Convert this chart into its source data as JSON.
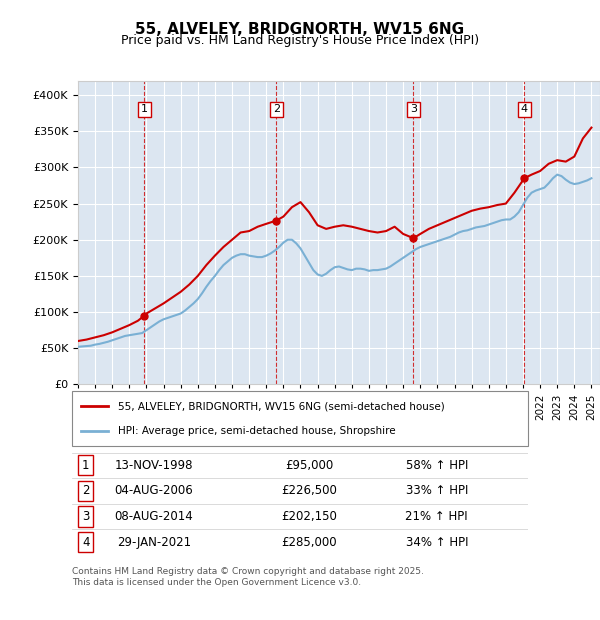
{
  "title": "55, ALVELEY, BRIDGNORTH, WV15 6NG",
  "subtitle": "Price paid vs. HM Land Registry's House Price Index (HPI)",
  "ylabel": "",
  "ylim": [
    0,
    420000
  ],
  "yticks": [
    0,
    50000,
    100000,
    150000,
    200000,
    250000,
    300000,
    350000,
    400000
  ],
  "ytick_labels": [
    "£0",
    "£50K",
    "£100K",
    "£150K",
    "£200K",
    "£250K",
    "£300K",
    "£350K",
    "£400K"
  ],
  "xlim_start": 1995.0,
  "xlim_end": 2025.5,
  "background_color": "#dce6f1",
  "plot_bg_color": "#dce6f1",
  "grid_color": "#ffffff",
  "hpi_color": "#7ab0d4",
  "price_color": "#cc0000",
  "transactions": [
    {
      "num": 1,
      "date_x": 1998.87,
      "price": 95000,
      "label": "13-NOV-1998",
      "price_str": "£95,000",
      "hpi_str": "58% ↑ HPI"
    },
    {
      "num": 2,
      "date_x": 2006.59,
      "price": 226500,
      "label": "04-AUG-2006",
      "price_str": "£226,500",
      "hpi_str": "33% ↑ HPI"
    },
    {
      "num": 3,
      "date_x": 2014.6,
      "price": 202150,
      "label": "08-AUG-2014",
      "price_str": "£202,150",
      "hpi_str": "21% ↑ HPI"
    },
    {
      "num": 4,
      "date_x": 2021.08,
      "price": 285000,
      "label": "29-JAN-2021",
      "price_str": "£285,000",
      "hpi_str": "34% ↑ HPI"
    }
  ],
  "legend_line1": "55, ALVELEY, BRIDGNORTH, WV15 6NG (semi-detached house)",
  "legend_line2": "HPI: Average price, semi-detached house, Shropshire",
  "footer": "Contains HM Land Registry data © Crown copyright and database right 2025.\nThis data is licensed under the Open Government Licence v3.0.",
  "hpi_data_x": [
    1995.0,
    1995.25,
    1995.5,
    1995.75,
    1996.0,
    1996.25,
    1996.5,
    1996.75,
    1997.0,
    1997.25,
    1997.5,
    1997.75,
    1998.0,
    1998.25,
    1998.5,
    1998.75,
    1999.0,
    1999.25,
    1999.5,
    1999.75,
    2000.0,
    2000.25,
    2000.5,
    2000.75,
    2001.0,
    2001.25,
    2001.5,
    2001.75,
    2002.0,
    2002.25,
    2002.5,
    2002.75,
    2003.0,
    2003.25,
    2003.5,
    2003.75,
    2004.0,
    2004.25,
    2004.5,
    2004.75,
    2005.0,
    2005.25,
    2005.5,
    2005.75,
    2006.0,
    2006.25,
    2006.5,
    2006.75,
    2007.0,
    2007.25,
    2007.5,
    2007.75,
    2008.0,
    2008.25,
    2008.5,
    2008.75,
    2009.0,
    2009.25,
    2009.5,
    2009.75,
    2010.0,
    2010.25,
    2010.5,
    2010.75,
    2011.0,
    2011.25,
    2011.5,
    2011.75,
    2012.0,
    2012.25,
    2012.5,
    2012.75,
    2013.0,
    2013.25,
    2013.5,
    2013.75,
    2014.0,
    2014.25,
    2014.5,
    2014.75,
    2015.0,
    2015.25,
    2015.5,
    2015.75,
    2016.0,
    2016.25,
    2016.5,
    2016.75,
    2017.0,
    2017.25,
    2017.5,
    2017.75,
    2018.0,
    2018.25,
    2018.5,
    2018.75,
    2019.0,
    2019.25,
    2019.5,
    2019.75,
    2020.0,
    2020.25,
    2020.5,
    2020.75,
    2021.0,
    2021.25,
    2021.5,
    2021.75,
    2022.0,
    2022.25,
    2022.5,
    2022.75,
    2023.0,
    2023.25,
    2023.5,
    2023.75,
    2024.0,
    2024.25,
    2024.5,
    2024.75,
    2025.0
  ],
  "hpi_data_y": [
    52000,
    52500,
    53000,
    53500,
    55000,
    56000,
    57500,
    59000,
    61000,
    63000,
    65000,
    67000,
    68000,
    69000,
    70000,
    71000,
    75000,
    79000,
    83000,
    87000,
    90000,
    92000,
    94000,
    96000,
    98000,
    102000,
    107000,
    112000,
    118000,
    126000,
    135000,
    143000,
    150000,
    158000,
    165000,
    170000,
    175000,
    178000,
    180000,
    180000,
    178000,
    177000,
    176000,
    176000,
    178000,
    181000,
    185000,
    190000,
    196000,
    200000,
    200000,
    195000,
    188000,
    178000,
    168000,
    158000,
    152000,
    150000,
    153000,
    158000,
    162000,
    163000,
    161000,
    159000,
    158000,
    160000,
    160000,
    159000,
    157000,
    158000,
    158000,
    159000,
    160000,
    163000,
    167000,
    171000,
    175000,
    179000,
    183000,
    187000,
    190000,
    192000,
    194000,
    196000,
    198000,
    200000,
    202000,
    204000,
    207000,
    210000,
    212000,
    213000,
    215000,
    217000,
    218000,
    219000,
    221000,
    223000,
    225000,
    227000,
    228000,
    228000,
    232000,
    238000,
    248000,
    258000,
    265000,
    268000,
    270000,
    272000,
    278000,
    285000,
    290000,
    288000,
    283000,
    279000,
    277000,
    278000,
    280000,
    282000,
    285000
  ],
  "price_data_x": [
    1995.0,
    1995.5,
    1996.0,
    1996.5,
    1997.0,
    1997.5,
    1998.0,
    1998.5,
    1998.87,
    1999.0,
    1999.5,
    2000.0,
    2000.5,
    2001.0,
    2001.5,
    2002.0,
    2002.5,
    2003.0,
    2003.5,
    2004.0,
    2004.5,
    2005.0,
    2005.5,
    2006.0,
    2006.59,
    2007.0,
    2007.5,
    2008.0,
    2008.5,
    2009.0,
    2009.5,
    2010.0,
    2010.5,
    2011.0,
    2011.5,
    2012.0,
    2012.5,
    2013.0,
    2013.5,
    2014.0,
    2014.6,
    2015.0,
    2015.5,
    2016.0,
    2016.5,
    2017.0,
    2017.5,
    2018.0,
    2018.5,
    2019.0,
    2019.5,
    2020.0,
    2020.5,
    2021.08,
    2021.5,
    2022.0,
    2022.5,
    2023.0,
    2023.5,
    2024.0,
    2024.5,
    2025.0
  ],
  "price_data_y": [
    60000,
    62000,
    65000,
    68000,
    72000,
    77000,
    82000,
    88000,
    95000,
    98000,
    105000,
    112000,
    120000,
    128000,
    138000,
    150000,
    165000,
    178000,
    190000,
    200000,
    210000,
    212000,
    218000,
    222000,
    226500,
    232000,
    245000,
    252000,
    238000,
    220000,
    215000,
    218000,
    220000,
    218000,
    215000,
    212000,
    210000,
    212000,
    218000,
    208000,
    202150,
    208000,
    215000,
    220000,
    225000,
    230000,
    235000,
    240000,
    243000,
    245000,
    248000,
    250000,
    265000,
    285000,
    290000,
    295000,
    305000,
    310000,
    308000,
    315000,
    340000,
    355000
  ]
}
